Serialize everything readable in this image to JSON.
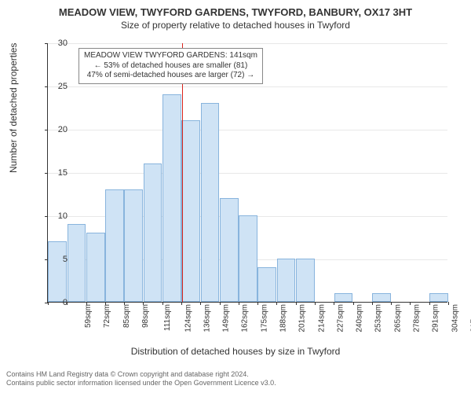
{
  "title_main": "MEADOW VIEW, TWYFORD GARDENS, TWYFORD, BANBURY, OX17 3HT",
  "title_sub": "Size of property relative to detached houses in Twyford",
  "chart": {
    "type": "histogram",
    "ylabel": "Number of detached properties",
    "xlabel": "Distribution of detached houses by size in Twyford",
    "ylim": [
      0,
      30
    ],
    "ytick_step": 5,
    "categories": [
      "59sqm",
      "72sqm",
      "85sqm",
      "98sqm",
      "111sqm",
      "124sqm",
      "136sqm",
      "149sqm",
      "162sqm",
      "175sqm",
      "188sqm",
      "201sqm",
      "214sqm",
      "227sqm",
      "240sqm",
      "253sqm",
      "265sqm",
      "278sqm",
      "291sqm",
      "304sqm",
      "317sqm"
    ],
    "values": [
      7,
      9,
      8,
      13,
      13,
      16,
      24,
      21,
      23,
      12,
      10,
      4,
      5,
      5,
      0,
      1,
      0,
      1,
      0,
      0,
      1
    ],
    "bar_fill": "#cfe3f5",
    "bar_border": "#88b4dd",
    "grid_color": "#e8e8e8",
    "axis_color": "#333333",
    "reference_line": {
      "color": "#d9241c",
      "bin_index": 7
    },
    "annotation": {
      "lines": [
        "MEADOW VIEW TWYFORD GARDENS: 141sqm",
        "← 53% of detached houses are smaller (81)",
        "47% of semi-detached houses are larger (72) →"
      ],
      "border": "#888888",
      "bg": "#ffffff",
      "fontsize": 10
    }
  },
  "footer": {
    "line1": "Contains HM Land Registry data © Crown copyright and database right 2024.",
    "line2": "Contains public sector information licensed under the Open Government Licence v3.0."
  }
}
